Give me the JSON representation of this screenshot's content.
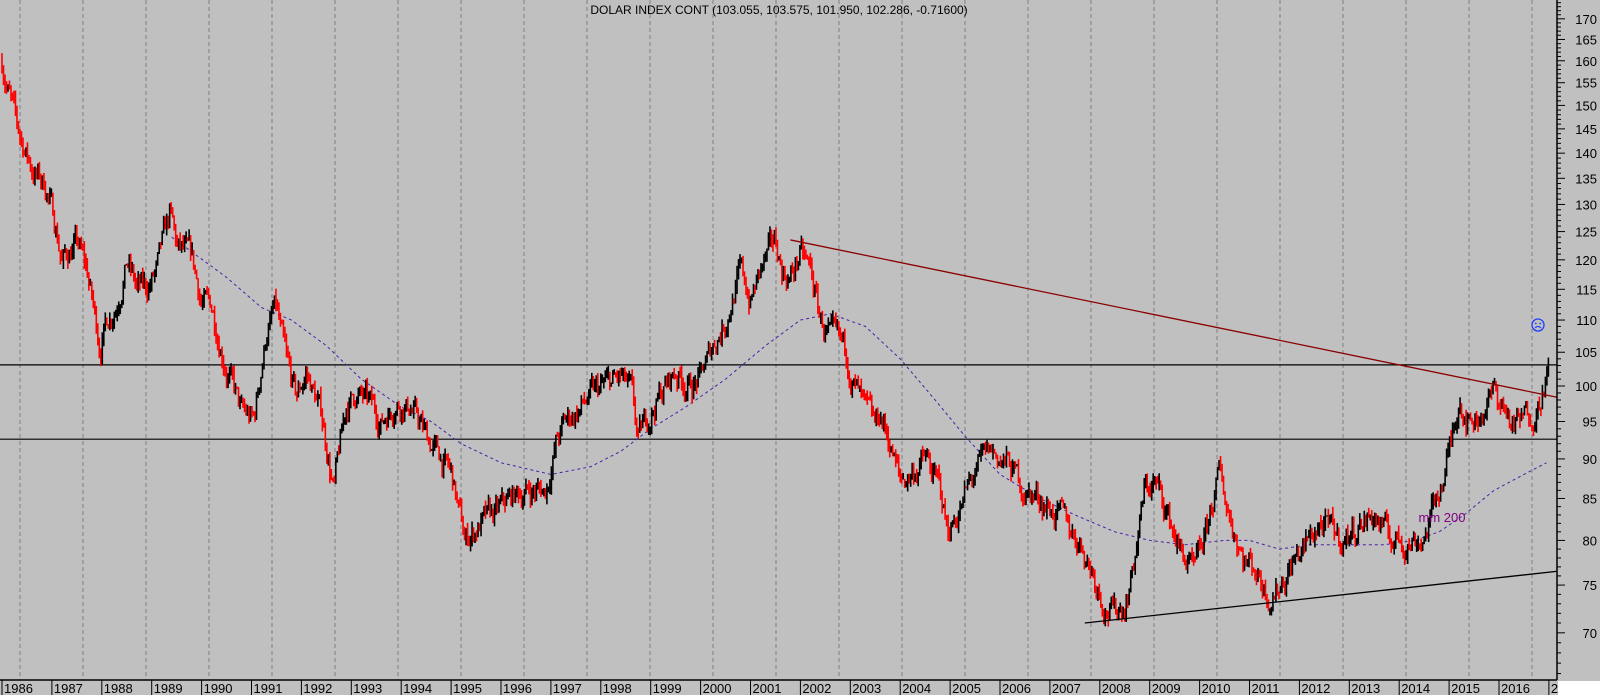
{
  "chart_data": {
    "type": "line",
    "title": "DOLAR INDEX CONT (103.055, 103.575, 101.950, 102.286, -0.71600)",
    "xlabel": "",
    "ylabel": "",
    "y_scale": "log",
    "ylim": [
      65.4,
      174.7
    ],
    "xlim": [
      1986.0,
      2017.15
    ],
    "grid": "vertical dashed",
    "y_ticks": [
      70,
      75,
      80,
      85,
      90,
      95,
      100,
      105,
      110,
      115,
      120,
      125,
      130,
      135,
      140,
      145,
      150,
      155,
      160,
      165,
      170
    ],
    "x_tick_labels": [
      "1986",
      "1987",
      "1988",
      "1989",
      "1990",
      "1991",
      "1992",
      "1993",
      "1994",
      "1995",
      "1996",
      "1997",
      "1998",
      "1999",
      "2000",
      "2001",
      "2002",
      "2003",
      "2004",
      "2005",
      "2006",
      "2007",
      "2008",
      "2009",
      "2010",
      "2011",
      "2012",
      "2013",
      "2014",
      "2015",
      "2016",
      "2"
    ],
    "price_series": {
      "name": "DOLAR INDEX CONT",
      "x": [
        1986.0,
        1986.3,
        1986.6,
        1986.9,
        1987.1,
        1987.2,
        1987.5,
        1987.7,
        1987.96,
        1988.1,
        1988.3,
        1988.5,
        1988.7,
        1988.9,
        1989.1,
        1989.37,
        1989.5,
        1989.8,
        1990.0,
        1990.2,
        1990.5,
        1990.8,
        1991.05,
        1991.3,
        1991.48,
        1991.7,
        1991.9,
        1992.1,
        1992.4,
        1992.65,
        1992.9,
        1993.1,
        1993.4,
        1993.6,
        1993.9,
        1994.2,
        1994.5,
        1994.8,
        1995.0,
        1995.27,
        1995.6,
        1995.9,
        1996.2,
        1996.5,
        1996.9,
        1997.1,
        1997.3,
        1997.6,
        1997.9,
        1998.1,
        1998.4,
        1998.6,
        1998.75,
        1998.9,
        1999.2,
        1999.5,
        1999.8,
        2000.0,
        2000.3,
        2000.5,
        2000.8,
        2001.0,
        2001.2,
        2001.5,
        2001.65,
        2001.8,
        2002.0,
        2002.2,
        2002.4,
        2002.6,
        2002.9,
        2003.1,
        2003.3,
        2003.5,
        2003.6,
        2003.8,
        2004.0,
        2004.2,
        2004.5,
        2004.8,
        2004.95,
        2005.2,
        2005.5,
        2005.8,
        2006.0,
        2006.2,
        2006.5,
        2006.8,
        2007.0,
        2007.3,
        2007.6,
        2007.9,
        2008.1,
        2008.3,
        2008.5,
        2008.7,
        2008.9,
        2009.1,
        2009.3,
        2009.6,
        2009.9,
        2010.1,
        2010.39,
        2010.6,
        2010.9,
        2011.1,
        2011.4,
        2011.6,
        2011.9,
        2012.1,
        2012.4,
        2012.6,
        2012.9,
        2013.2,
        2013.5,
        2013.7,
        2013.9,
        2014.2,
        2014.5,
        2014.7,
        2014.9,
        2015.1,
        2015.2,
        2015.4,
        2015.6,
        2015.9,
        2016.1,
        2016.3,
        2016.6,
        2016.8,
        2016.95,
        2017.0
      ],
      "close": [
        160,
        145,
        137,
        133,
        125,
        120,
        123,
        118,
        106,
        110,
        113,
        120,
        115,
        115,
        118,
        128,
        122,
        120,
        113,
        112,
        103,
        96,
        95,
        108,
        112,
        103,
        98,
        102,
        96,
        86,
        97,
        99,
        97,
        95,
        98,
        97,
        93,
        90,
        88,
        80,
        82,
        83,
        85,
        86,
        86,
        92,
        95,
        97,
        99,
        100,
        101,
        99,
        92,
        95,
        99,
        102,
        100,
        101,
        107,
        110,
        118,
        113,
        118,
        123,
        118,
        117,
        121,
        118,
        110,
        107,
        105,
        100,
        96,
        94,
        96,
        92,
        87,
        88,
        90,
        86,
        81,
        84,
        88,
        91,
        90,
        89,
        86,
        85,
        84,
        82,
        80,
        76,
        73,
        72,
        73,
        78,
        86,
        87,
        84,
        79,
        76,
        80,
        88,
        83,
        78,
        77,
        74,
        75,
        78,
        79,
        82,
        81,
        80,
        82,
        83,
        81,
        80,
        80,
        80.5,
        84,
        88,
        94,
        99,
        95,
        96,
        99,
        97,
        94,
        96,
        98,
        102,
        102.3
      ]
    },
    "ma_series": {
      "name": "mm 200",
      "label": "mm 200",
      "x": [
        1989.4,
        1990.5,
        1991.2,
        1991.8,
        1992.5,
        1993.2,
        1994.0,
        1994.6,
        1995.2,
        1996.0,
        1997.0,
        1997.8,
        1998.4,
        1999.0,
        1999.7,
        2000.5,
        2001.3,
        2002.0,
        2002.6,
        2003.3,
        2004.0,
        2004.7,
        2005.3,
        2006.0,
        2006.8,
        2007.5,
        2008.3,
        2009.0,
        2009.7,
        2010.5,
        2011.0,
        2011.6,
        2012.2,
        2013.0,
        2013.7,
        2014.3,
        2014.8,
        2015.3,
        2015.9,
        2016.5,
        2016.95
      ],
      "values": [
        124,
        117,
        112,
        110,
        106,
        101,
        97,
        95,
        92,
        89.5,
        88,
        89,
        91,
        94,
        97,
        101,
        106,
        110,
        111,
        109,
        104,
        98,
        93,
        88,
        85,
        83,
        81,
        80,
        79.5,
        80,
        80,
        79,
        79.5,
        79.5,
        79.5,
        80,
        81,
        83,
        86,
        88,
        89.5
      ]
    },
    "lines": {
      "resistance_upper": 103.1,
      "support_lower": 92.6,
      "down_trendline": {
        "from": [
          2001.8,
          123.5
        ],
        "to": [
          2017.15,
          98.4
        ]
      },
      "up_trendline": {
        "from": [
          2007.7,
          71.0
        ],
        "to": [
          2017.15,
          76.5
        ]
      }
    },
    "signal_icon": "sad-face-icon",
    "colors": {
      "background": "#c0c0c0",
      "up_bar": "#000000",
      "down_bar": "#ff0000",
      "ma": "#4b1fa8",
      "trendline": "#8b0000",
      "ma_label": "#800080",
      "signal": "#1e3cff"
    }
  }
}
